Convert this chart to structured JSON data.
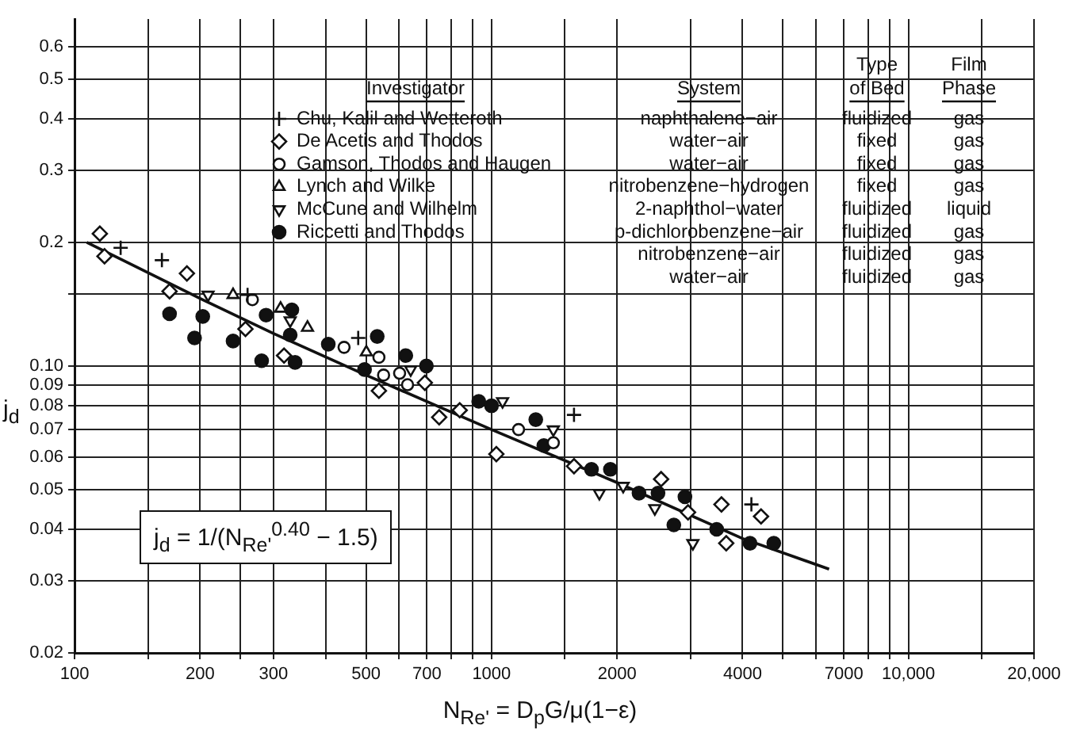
{
  "chart_data": {
    "type": "scatter",
    "xlabel": "N$_{Re'}$ = D$_{p}$G/μ(1−ε)",
    "ylabel": "j$_{d}$",
    "legend_title": "Investigator",
    "legend": "top",
    "grid": true,
    "log": "xy",
    "xlim": [
      100,
      20000
    ],
    "xticks": [
      100,
      {
        "value": 150,
        "label": null
      },
      200,
      {
        "value": 250,
        "label": null
      },
      300,
      {
        "value": 400,
        "label": null
      },
      500,
      {
        "value": 600,
        "label": null
      },
      700,
      {
        "value": 800,
        "label": null
      },
      {
        "value": 900,
        "label": null
      },
      1000,
      {
        "value": 1500,
        "label": null
      },
      2000,
      {
        "value": 3000,
        "label": null
      },
      4000,
      {
        "value": 5000,
        "label": null
      },
      {
        "value": 6000,
        "label": null
      },
      7000,
      {
        "value": 8000,
        "label": null
      },
      {
        "value": 9000,
        "label": null
      },
      {
        "value": 10000,
        "label": "10,000"
      },
      {
        "value": 15000,
        "label": null
      },
      {
        "value": 20000,
        "label": "20,000"
      }
    ],
    "ylim": [
      0.02,
      0.7
    ],
    "yticks": [
      0.02,
      0.03,
      0.04,
      0.05,
      0.06,
      0.07,
      0.08,
      0.09,
      {
        "value": 0.1,
        "label": "0.10"
      },
      {
        "value": 0.15,
        "label": null
      },
      0.2,
      0.3,
      0.4,
      0.5,
      0.6
    ],
    "annotations": [
      "j$_{d}$ = 1/(N$_{Re'}$$^{0.40}$ − 1.5)",
      "System",
      "Type of Bed",
      "Film Phase",
      "naphthalene−air",
      "fluidized",
      "gas",
      "water−air",
      "fixed",
      "gas",
      "water−air",
      "fixed",
      "gas",
      "nitrobenzene−hydrogen",
      "fixed",
      "gas",
      "2-naphthol−water",
      "fluidized",
      "liquid",
      "p-dichlorobenzene−air",
      "fluidized",
      "gas",
      "nitrobenzene−air",
      "fluidized",
      "gas",
      "water−air",
      "fluidized",
      "gas"
    ],
    "series": [
      {
        "name": "Chu, Kalil and Wetteroth",
        "color": "#111111",
        "marker": "cross",
        "x": [
          129,
          162,
          260,
          479,
          1577,
          4200
        ],
        "values": [
          0.194,
          0.181,
          0.149,
          0.117,
          0.076,
          0.046
        ]
      },
      {
        "name": "De Acetis and Thodos",
        "color": "#111111",
        "marker": "diamond",
        "x": [
          115,
          118,
          169,
          186,
          257,
          318,
          537,
          692,
          749,
          839,
          1027,
          1577,
          2551,
          2960,
          3560,
          4430,
          3655
        ],
        "values": [
          0.21,
          0.185,
          0.152,
          0.168,
          0.123,
          0.106,
          0.087,
          0.091,
          0.075,
          0.078,
          0.061,
          0.057,
          0.053,
          0.044,
          0.046,
          0.043,
          0.037
        ]
      },
      {
        "name": "Gamson, Thodos and Haugen",
        "color": "#111111",
        "marker": "circle",
        "x": [
          267,
          443,
          537,
          551,
          602,
          629,
          1161,
          1407
        ],
        "values": [
          0.145,
          0.111,
          0.105,
          0.095,
          0.096,
          0.09,
          0.07,
          0.065
        ]
      },
      {
        "name": "Lynch and Wilke",
        "color": "#111111",
        "marker": "triangle",
        "x": [
          240,
          312,
          362,
          501
        ],
        "values": [
          0.149,
          0.138,
          0.124,
          0.108
        ]
      },
      {
        "name": "McCune and Wilhelm",
        "color": "#111111",
        "marker": "triangle-down",
        "x": [
          209,
          329,
          640,
          1063,
          1407,
          1814,
          2069,
          2464,
          3040
        ],
        "values": [
          0.149,
          0.129,
          0.098,
          0.082,
          0.07,
          0.049,
          0.051,
          0.045,
          0.037
        ]
      },
      {
        "name": "Riccetti and Thodos",
        "color": "#111111",
        "marker": "filled-circle",
        "x": [
          169,
          203,
          194,
          240,
          288,
          332,
          329,
          281,
          338,
          406,
          532,
          496,
          623,
          698,
          932,
          1000,
          1277,
          1335,
          1737,
          1928,
          2258,
          2508,
          2910,
          2737,
          3467,
          4168,
          4753
        ],
        "values": [
          0.134,
          0.132,
          0.117,
          0.115,
          0.133,
          0.137,
          0.119,
          0.103,
          0.102,
          0.113,
          0.118,
          0.098,
          0.106,
          0.1,
          0.082,
          0.08,
          0.074,
          0.064,
          0.056,
          0.056,
          0.049,
          0.049,
          0.048,
          0.041,
          0.04,
          0.037,
          0.037
        ]
      },
      {
        "type": "line",
        "color": "#111111",
        "marker": "none",
        "x": [
          107,
          200,
          300,
          500,
          1000,
          2000,
          4000,
          6450
        ],
        "values": [
          0.2,
          0.146,
          0.12,
          0.095,
          0.07,
          0.052,
          0.038,
          0.032
        ]
      }
    ]
  }
}
